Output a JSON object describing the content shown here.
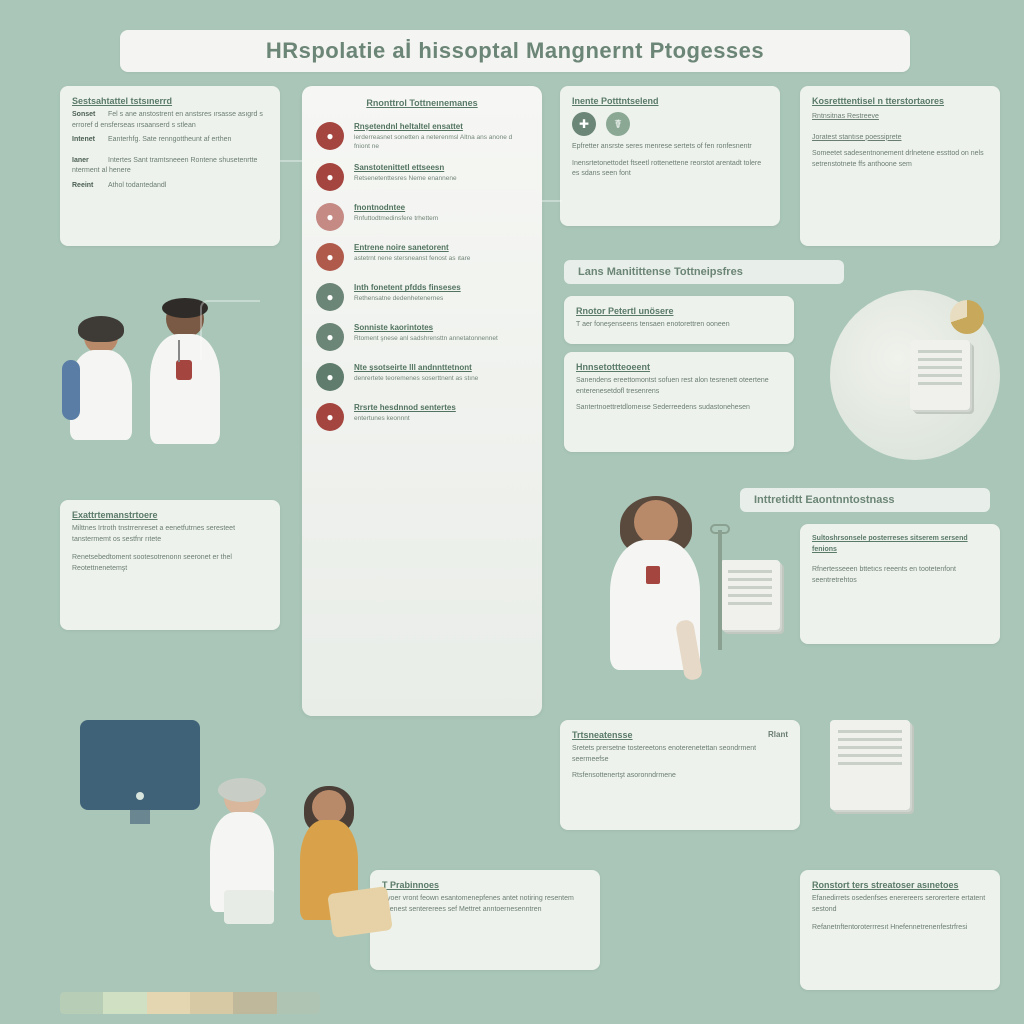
{
  "colors": {
    "page_bg": "#a9c6b8",
    "panel_bg": "#eef2ed",
    "panel_bg_light": "#f6f7f4",
    "text_heading": "#5a7a68",
    "text_body": "#6a7d72",
    "title_text": "#6b8576",
    "monitor": "#3f6278",
    "skin_a": "#b98a6a",
    "skin_b": "#7a5a44",
    "skin_c": "#d8b79c",
    "coat": "#f5f6f3",
    "scrub_blue": "#5a7da6",
    "scrub_orange": "#d9a24a",
    "scrub_green": "#b6c8b4",
    "hair_dark": "#3e3a36",
    "bar_palette": [
      "#b7cdb6",
      "#cfe0c3",
      "#e3d6b1",
      "#d7c9a3",
      "#c0b89a",
      "#b0c4b4"
    ]
  },
  "title": "HRspolatie aİ hissoptal Mangnernt Ptogesses",
  "top_left_cards": [
    {
      "header": "Sestsahtattel tstsınerrd",
      "rows": [
        {
          "label": "Sonset",
          "text": "Fel s ane anstostrent en anstsres ırsasse asıgrd s erroref d ensferseas ırsaanserd s stlean"
        },
        {
          "label": "Intenet",
          "text": "Eanterhfg. Sate renngottheunt af erthen"
        },
        {
          "label": "Ianer",
          "text": "Intertes Sant tramtsneeen Rontene shusetenrtte nterment al henere"
        },
        {
          "label": "Reeint",
          "text": "Athol todantedandl"
        }
      ]
    }
  ],
  "mid_header": "Rnonttrol Tottneınemanes",
  "mid_items": [
    {
      "icon_color": "#a5453f",
      "title": "Rnşetendnl heltaltel ensattet",
      "desc": "lerderreasnet sonetten a neterenmsl Altna ans anone d fniont ne"
    },
    {
      "icon_color": "#a5453f",
      "title": "Sanstotenittetl ettseesn",
      "desc": "Retsenetenttesres Neme enannene"
    },
    {
      "icon_color": "#c58a84",
      "title": "fnontnodntee",
      "desc": "Rnfuttodtmedinsfere trhettem"
    },
    {
      "icon_color": "#b05a4c",
      "title": "Entrene noire sanetorent",
      "desc": "astetrnt nene stersneanst fenost as ıtare"
    },
    {
      "icon_color": "#6b8576",
      "title": "Inth fonetent pfdds finseses",
      "desc": "Rethensatne dedenhetenernes"
    },
    {
      "icon_color": "#6b8576",
      "title": "Sonniste kaorintotes",
      "desc": "Rtoment şnese anl sadshrensttn annetatonnennet"
    },
    {
      "icon_color": "#5f7c6c",
      "title": "Nte şsotseirte lll andnnttetnont",
      "desc": "denrertete teoremenes soserttnent as stıne"
    },
    {
      "icon_color": "#a5453f",
      "title": "Rrsrte hesdnnod sentertes",
      "desc": "entertunes keonnnt"
    }
  ],
  "top_right_cards": [
    {
      "header": "Inente Potttntselend",
      "icons": [
        "#6b8576",
        "#8aa894"
      ],
      "rows": [
        {
          "text": "Epfretter ansrste seres menrese sertets of fen ronfesnentr"
        },
        {
          "text": "Inensrtetonettodet ftseetl rottenettene reorstot arentadt tolere es sdans seen font"
        }
      ]
    },
    {
      "header": "Kosretttentisel n tterstortaores",
      "rows": [
        {
          "text": "Rntnsitnas Restreeve"
        },
        {
          "text": "Joratest stantıse poessiprete"
        },
        {
          "text": "Someetet sadesentnonement drlnetene essttod on nels setrenstotnete ffs anthoone sem"
        }
      ]
    }
  ],
  "section_titles": {
    "maintenance": "Lans Manitittense Tottneipsfres",
    "examinations": "Inttretidtt Eaontnntostnass"
  },
  "maintenance_cards": [
    {
      "header": "Rnotor Petertl unösere",
      "rows": [
        {
          "text": "T aer foneşenseens tensaen enotorettren ooneen"
        }
      ]
    },
    {
      "header": "Hnnsetottteoeent",
      "rows": [
        {
          "text": "Sanendens ereettomontst sofuen rest alon tesrenett oteertene enterenesetdofl tresenrens"
        },
        {
          "text": "Santertnoettretdlomeıse Sederreedens sudastonehesen"
        }
      ]
    }
  ],
  "exam_cards": [
    {
      "header": "",
      "rows": [
        {
          "text": "Sultoshrsonsele posterreses sitserem sersend fenions"
        },
        {
          "text": "Rfnertesseeen bttetıcs reeents en tootetenfont seentretrehtos"
        }
      ]
    }
  ],
  "left_lower_card": {
    "header": "Exattrtemanstrtoere",
    "rows": [
      {
        "text": "Milttnes Irtroth tnstrrenreset a eenetfutrnes seresteet tanstermemt os sestfnr rıtete"
      },
      {
        "text": "Renetsebedtoment sootesotrenonn seeronet er thel Reotettnenetemşt"
      }
    ]
  },
  "bottom_cards": [
    {
      "header": "Trtsneatensse",
      "tag": "Rlant",
      "rows": [
        {
          "text": "Sretets prersetne tostereetons enoterenetettan seondrment seermeefse"
        },
        {
          "text": "Rtsfensottenertşt asoronndrmene"
        }
      ]
    },
    {
      "header": "T Prabinnoes",
      "rows": [
        {
          "text": "Ryoer vront feown esantomenepfenes antet notiring resentem neenest sentererees sef Mettret anntoernesenntren"
        }
      ]
    },
    {
      "header": "Ronstort ters streatoser asınetoes",
      "rows": [
        {
          "text": "Efanedirrets osedenfses enerereers serorertere ertatent sestond"
        },
        {
          "text": "Refanetnftentoroterrresıt Hnefennetrenenfestrfresi"
        }
      ]
    }
  ]
}
